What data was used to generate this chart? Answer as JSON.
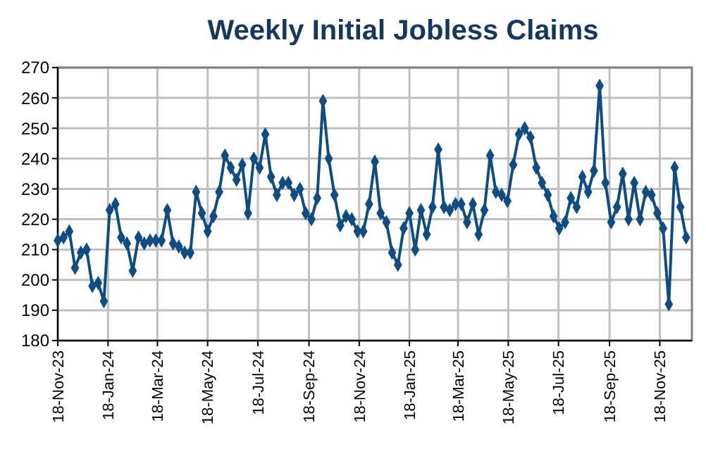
{
  "chart_data": {
    "type": "line",
    "title": "Weekly Initial Jobless Claims",
    "marker": "diamond",
    "grid": true,
    "xlim": [
      "2023-11-18",
      "2025-12-27"
    ],
    "ylim": [
      180,
      270
    ],
    "yticks": [
      180,
      190,
      200,
      210,
      220,
      230,
      240,
      250,
      260,
      270
    ],
    "xticks": [
      {
        "value": "2023-11-18",
        "label": "18-Nov-23"
      },
      {
        "value": "2024-01-18",
        "label": "18-Jan-24"
      },
      {
        "value": "2024-03-18",
        "label": "18-Mar-24"
      },
      {
        "value": "2024-05-18",
        "label": "18-May-24"
      },
      {
        "value": "2024-07-18",
        "label": "18-Jul-24"
      },
      {
        "value": "2024-09-18",
        "label": "18-Sep-24"
      },
      {
        "value": "2024-11-18",
        "label": "18-Nov-24"
      },
      {
        "value": "2025-01-18",
        "label": "18-Jan-25"
      },
      {
        "value": "2025-03-18",
        "label": "18-Mar-25"
      },
      {
        "value": "2025-05-18",
        "label": "18-May-25"
      },
      {
        "value": "2025-07-18",
        "label": "18-Jul-25"
      },
      {
        "value": "2025-09-18",
        "label": "18-Sep-25"
      },
      {
        "value": "2025-11-18",
        "label": "18-Nov-25"
      }
    ],
    "x": [
      "2023-11-18",
      "2023-11-25",
      "2023-12-02",
      "2023-12-09",
      "2023-12-16",
      "2023-12-23",
      "2023-12-30",
      "2024-01-06",
      "2024-01-13",
      "2024-01-20",
      "2024-01-27",
      "2024-02-03",
      "2024-02-10",
      "2024-02-17",
      "2024-02-24",
      "2024-03-02",
      "2024-03-09",
      "2024-03-16",
      "2024-03-23",
      "2024-03-30",
      "2024-04-06",
      "2024-04-13",
      "2024-04-20",
      "2024-04-27",
      "2024-05-04",
      "2024-05-11",
      "2024-05-18",
      "2024-05-25",
      "2024-06-01",
      "2024-06-08",
      "2024-06-15",
      "2024-06-22",
      "2024-06-29",
      "2024-07-06",
      "2024-07-13",
      "2024-07-20",
      "2024-07-27",
      "2024-08-03",
      "2024-08-10",
      "2024-08-17",
      "2024-08-24",
      "2024-08-31",
      "2024-09-07",
      "2024-09-14",
      "2024-09-21",
      "2024-09-28",
      "2024-10-05",
      "2024-10-12",
      "2024-10-19",
      "2024-10-26",
      "2024-11-02",
      "2024-11-09",
      "2024-11-16",
      "2024-11-23",
      "2024-11-30",
      "2024-12-07",
      "2024-12-14",
      "2024-12-21",
      "2024-12-28",
      "2025-01-04",
      "2025-01-11",
      "2025-01-18",
      "2025-01-25",
      "2025-02-01",
      "2025-02-08",
      "2025-02-15",
      "2025-02-22",
      "2025-03-01",
      "2025-03-08",
      "2025-03-15",
      "2025-03-22",
      "2025-03-29",
      "2025-04-05",
      "2025-04-12",
      "2025-04-19",
      "2025-04-26",
      "2025-05-03",
      "2025-05-10",
      "2025-05-17",
      "2025-05-24",
      "2025-05-31",
      "2025-06-07",
      "2025-06-14",
      "2025-06-21",
      "2025-06-28",
      "2025-07-05",
      "2025-07-12",
      "2025-07-19",
      "2025-07-26",
      "2025-08-02",
      "2025-08-09",
      "2025-08-16",
      "2025-08-23",
      "2025-08-30",
      "2025-09-06",
      "2025-09-13",
      "2025-09-20",
      "2025-09-27",
      "2025-10-04",
      "2025-10-11",
      "2025-10-18",
      "2025-10-25",
      "2025-11-01",
      "2025-11-08",
      "2025-11-15",
      "2025-11-22",
      "2025-11-29",
      "2025-12-06",
      "2025-12-13",
      "2025-12-20"
    ],
    "series": [
      {
        "color": "#0f4c81",
        "values": [
          213,
          214,
          216,
          204,
          209,
          210,
          198,
          199,
          193,
          223,
          225,
          214,
          212,
          203,
          214,
          212,
          213,
          213,
          213,
          223,
          212,
          211,
          209,
          209,
          229,
          222,
          216,
          221,
          229,
          241,
          237,
          233,
          238,
          222,
          240,
          237,
          248,
          234,
          228,
          232,
          232,
          228,
          230,
          222,
          220,
          227,
          259,
          240,
          228,
          218,
          221,
          220,
          216,
          216,
          225,
          239,
          222,
          219,
          209,
          205,
          217,
          222,
          210,
          223,
          215,
          224,
          243,
          224,
          223,
          225,
          225,
          219,
          225,
          215,
          223,
          241,
          229,
          228,
          226,
          238,
          248,
          250,
          247,
          237,
          232,
          228,
          221,
          217,
          219,
          227,
          224,
          234,
          229,
          236,
          264,
          232,
          219,
          224,
          235,
          220,
          232,
          220,
          229,
          228,
          222,
          217,
          192,
          237,
          224,
          214
        ]
      }
    ]
  }
}
